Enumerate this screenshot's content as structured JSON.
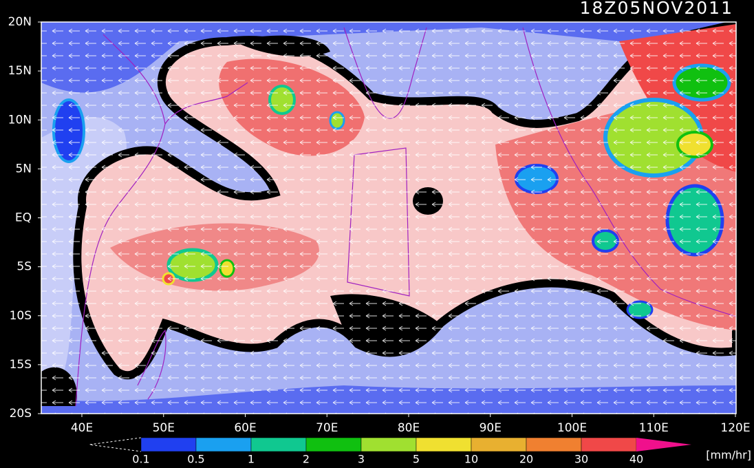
{
  "title": "18Z05NOV2011",
  "map": {
    "lat_labels": [
      "20N",
      "15N",
      "10N",
      "5N",
      "EQ",
      "5S",
      "10S",
      "15S",
      "20S"
    ],
    "lon_labels": [
      "40E",
      "50E",
      "60E",
      "70E",
      "80E",
      "90E",
      "100E",
      "110E",
      "120E"
    ]
  },
  "colorbar": {
    "labels": [
      "0.1",
      "0.5",
      "1",
      "2",
      "3",
      "5",
      "10",
      "20",
      "30",
      "40"
    ],
    "colors": [
      "#2040f0",
      "#1aa0f0",
      "#10c890",
      "#10c010",
      "#a0e030",
      "#f0e030",
      "#e8b030",
      "#f08030",
      "#f04848"
    ],
    "over_color": "#f0108c",
    "unit": "[mm/hr]"
  }
}
